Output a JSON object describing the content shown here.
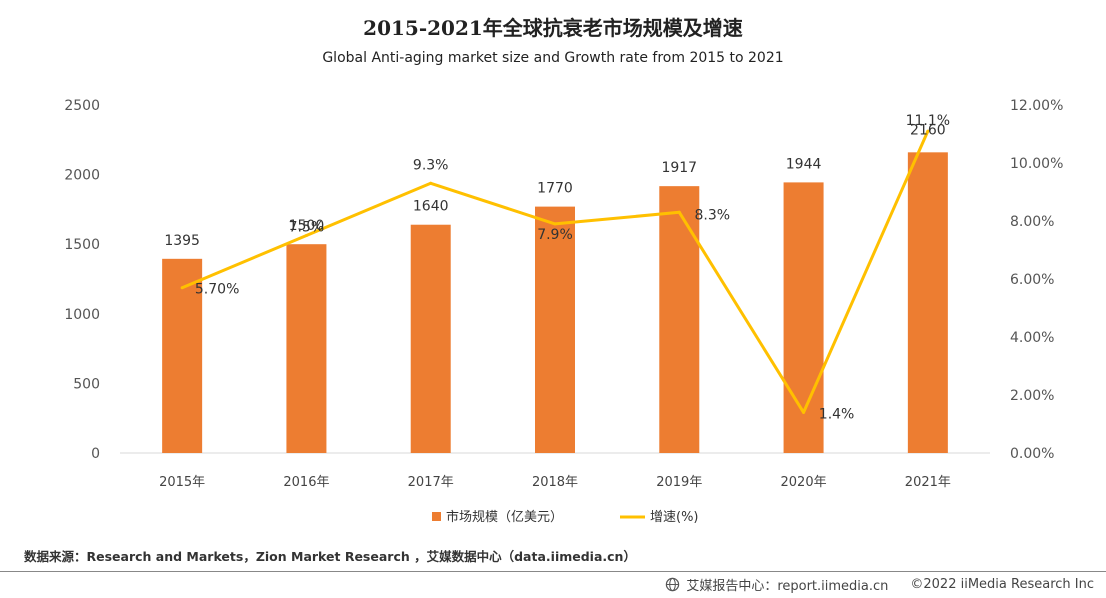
{
  "header": {
    "title": "2015-2021年全球抗衰老市场规模及增速",
    "subtitle": "Global Anti-aging market size and Growth rate from 2015 to 2021"
  },
  "chart_data": {
    "type": "bar",
    "title": "2015-2021年全球抗衰老市场规模及增速",
    "subtitle": "Global Anti-aging market size and Growth rate from 2015 to 2021",
    "categories": [
      "2015年",
      "2016年",
      "2017年",
      "2018年",
      "2019年",
      "2020年",
      "2021年"
    ],
    "series": [
      {
        "name": "市场规模（亿美元）",
        "type": "bar",
        "axis": "left",
        "color": "#ED7D31",
        "values": [
          1395,
          1500,
          1640,
          1770,
          1917,
          1944,
          2160
        ],
        "labels": [
          "1395",
          "1500",
          "1640",
          "1770",
          "1917",
          "1944",
          "2160"
        ]
      },
      {
        "name": "增速(%)",
        "type": "line",
        "axis": "right",
        "color": "#FFC000",
        "values": [
          5.7,
          7.5,
          9.3,
          7.9,
          8.3,
          1.4,
          11.1
        ],
        "labels": [
          "5.70%",
          "7.5%",
          "9.3%",
          "7.9%",
          "8.3%",
          "1.4%",
          "11.1%"
        ]
      }
    ],
    "y_left": {
      "ylim": [
        0,
        2500
      ],
      "ticks": [
        "0",
        "500",
        "1000",
        "1500",
        "2000",
        "2500"
      ]
    },
    "y_right": {
      "ylim": [
        0,
        12
      ],
      "ticks": [
        "0.00%",
        "2.00%",
        "4.00%",
        "6.00%",
        "8.00%",
        "10.00%",
        "12.00%"
      ]
    },
    "grid": false,
    "legend_position": "bottom"
  },
  "footer": {
    "source": "数据来源：Research and Markets，Zion Market Research ，艾媒数据中心（data.iimedia.cn）",
    "site": "艾媒报告中心：report.iimedia.cn",
    "copyright": "©2022  iiMedia Research  Inc"
  }
}
